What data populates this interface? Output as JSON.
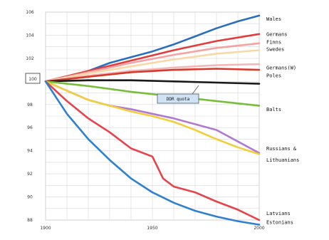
{
  "chart_data": {
    "type": "line",
    "xlim": [
      1900,
      2000
    ],
    "ylim": [
      88,
      106
    ],
    "xticks": [
      "1900",
      "1950",
      "2000"
    ],
    "yticks": [
      "88",
      "90",
      "92",
      "94",
      "96",
      "98",
      "100",
      "102",
      "104",
      "106"
    ],
    "grid": true,
    "baseline_label": "100",
    "annotation": "DDR quota",
    "series": [
      {
        "color": "#2a6fbf",
        "x": [
          1900,
          1910,
          1920,
          1930,
          1940,
          1950,
          1960,
          1970,
          1980,
          1990,
          2000
        ],
        "y": [
          100,
          100.4,
          100.9,
          101.6,
          102.1,
          102.6,
          103.2,
          103.9,
          104.6,
          105.2,
          105.7
        ]
      },
      {
        "color": "#e23c3c",
        "x": [
          1900,
          1920,
          1940,
          1960,
          1980,
          2000
        ],
        "y": [
          100,
          100.9,
          101.8,
          102.7,
          103.5,
          104.1
        ]
      },
      {
        "color": "#f4a3a3",
        "x": [
          1900,
          1920,
          1940,
          1960,
          1980,
          2000
        ],
        "y": [
          100,
          100.8,
          101.6,
          102.3,
          102.9,
          103.3
        ]
      },
      {
        "color": "#f7d9a8",
        "x": [
          1900,
          1920,
          1940,
          1960,
          1980,
          2000
        ],
        "y": [
          100,
          100.7,
          101.3,
          101.9,
          102.4,
          102.7
        ]
      },
      {
        "color": "#f4b7b7",
        "x": [
          1900,
          1920,
          1940,
          1960,
          1980,
          2000
        ],
        "y": [
          100,
          100.5,
          100.9,
          101.2,
          101.4,
          101.5
        ]
      },
      {
        "color": "#d63a2c",
        "x": [
          1900,
          1920,
          1940,
          1960,
          1980,
          2000
        ],
        "y": [
          100,
          100.4,
          100.8,
          101.0,
          101.1,
          101.0
        ]
      },
      {
        "color": "#1a1a1a",
        "x": [
          1900,
          1920,
          1940,
          1960,
          1980,
          2000
        ],
        "y": [
          100,
          100.1,
          100.1,
          100.0,
          99.9,
          99.8
        ]
      },
      {
        "color": "#78be3c",
        "x": [
          1900,
          1920,
          1940,
          1960,
          1980,
          2000
        ],
        "y": [
          100,
          99.6,
          99.1,
          98.7,
          98.3,
          97.9
        ]
      },
      {
        "color": "#b07ad0",
        "x": [
          1900,
          1910,
          1920,
          1930,
          1940,
          1950,
          1960,
          1970,
          1980,
          1990,
          2000
        ],
        "y": [
          100,
          99.2,
          98.4,
          97.9,
          97.6,
          97.2,
          96.8,
          96.3,
          95.8,
          94.8,
          93.8
        ]
      },
      {
        "color": "#f1cf3c",
        "x": [
          1900,
          1910,
          1920,
          1930,
          1940,
          1950,
          1960,
          1970,
          1980,
          1990,
          2000
        ],
        "y": [
          100,
          99.2,
          98.4,
          97.9,
          97.4,
          97.0,
          96.5,
          95.8,
          95.0,
          94.3,
          93.7
        ]
      },
      {
        "color": "#e8434b",
        "x": [
          1900,
          1910,
          1920,
          1930,
          1940,
          1950,
          1955,
          1960,
          1970,
          1980,
          1990,
          2000
        ],
        "y": [
          100,
          98.3,
          96.8,
          95.6,
          94.2,
          93.5,
          91.6,
          90.9,
          90.4,
          89.6,
          88.9,
          88.0
        ]
      },
      {
        "color": "#2f80d0",
        "x": [
          1900,
          1910,
          1920,
          1930,
          1940,
          1950,
          1960,
          1970,
          1980,
          1990,
          2000
        ],
        "y": [
          100,
          97.2,
          95.0,
          93.2,
          91.6,
          90.4,
          89.5,
          88.8,
          88.3,
          87.9,
          87.6
        ]
      }
    ],
    "right_labels": [
      {
        "text": "Wales",
        "y": 105.4
      },
      {
        "text": "Germans",
        "y": 104.1
      },
      {
        "text": "Finns",
        "y": 103.4
      },
      {
        "text": "Swedes",
        "y": 102.8
      },
      {
        "text": "Germans(W)",
        "y": 101.2
      },
      {
        "text": "Poles",
        "y": 100.5
      },
      {
        "text": "Balts",
        "y": 97.6
      },
      {
        "text": "Russians &",
        "y": 94.2
      },
      {
        "text": "Lithuanians",
        "y": 93.2
      },
      {
        "text": "Latvians",
        "y": 88.6
      },
      {
        "text": "Estonians",
        "y": 87.8
      }
    ]
  }
}
